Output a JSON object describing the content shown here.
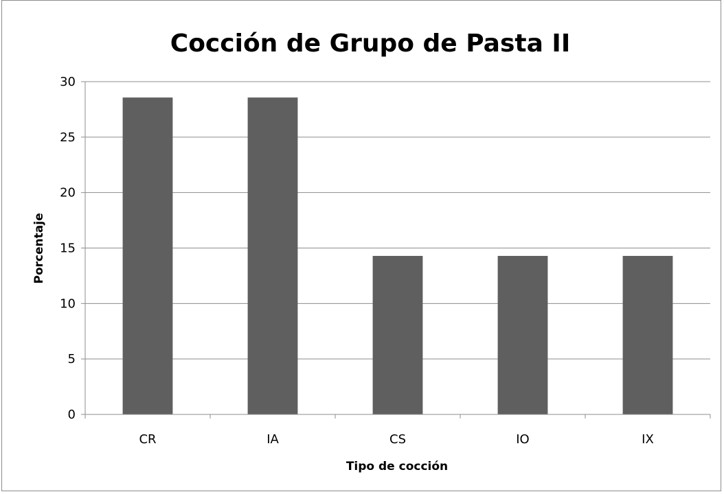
{
  "chart_data": {
    "type": "bar",
    "title": "Cocción de Grupo de Pasta II",
    "xlabel": "Tipo de cocción",
    "ylabel": "Porcentaje",
    "categories": [
      "CR",
      "IA",
      "CS",
      "IO",
      "IX"
    ],
    "values": [
      28.57,
      28.57,
      14.29,
      14.29,
      14.29
    ],
    "ylim": [
      0,
      30
    ],
    "yticks": [
      0,
      5,
      10,
      15,
      20,
      25,
      30
    ],
    "grid": true,
    "legend": "none",
    "bar_color": "#5f5f5f",
    "grid_color": "#8c8c8c"
  }
}
